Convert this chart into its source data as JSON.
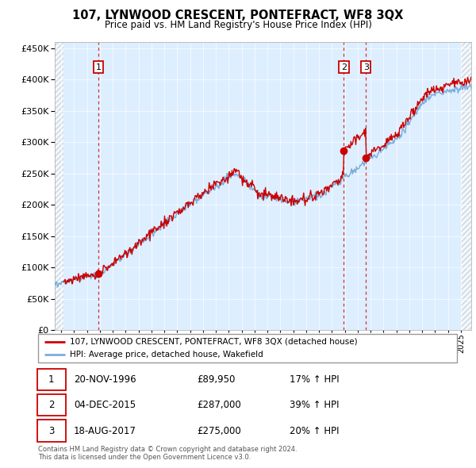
{
  "title": "107, LYNWOOD CRESCENT, PONTEFRACT, WF8 3QX",
  "subtitle": "Price paid vs. HM Land Registry's House Price Index (HPI)",
  "legend_line1": "107, LYNWOOD CRESCENT, PONTEFRACT, WF8 3QX (detached house)",
  "legend_line2": "HPI: Average price, detached house, Wakefield",
  "transactions": [
    {
      "num": 1,
      "date": "20-NOV-1996",
      "price": 89950,
      "price_str": "£89,950",
      "pct": "17% ↑ HPI",
      "year_x": 1996.89
    },
    {
      "num": 2,
      "date": "04-DEC-2015",
      "price": 287000,
      "price_str": "£287,000",
      "pct": "39% ↑ HPI",
      "year_x": 2015.92
    },
    {
      "num": 3,
      "date": "18-AUG-2017",
      "price": 275000,
      "price_str": "£275,000",
      "pct": "20% ↑ HPI",
      "year_x": 2017.63
    }
  ],
  "footer": "Contains HM Land Registry data © Crown copyright and database right 2024.\nThis data is licensed under the Open Government Licence v3.0.",
  "hpi_color": "#7aacdc",
  "price_color": "#cc0000",
  "background_chart": "#ddeeff",
  "ylim": [
    0,
    460000
  ],
  "yticks": [
    0,
    50000,
    100000,
    150000,
    200000,
    250000,
    300000,
    350000,
    400000,
    450000
  ],
  "xmin": 1993.5,
  "xmax": 2025.8,
  "hatch_left_end": 1994.2,
  "hatch_right_start": 2025.0,
  "noise_seed_hpi": 42,
  "noise_seed_price": 99
}
